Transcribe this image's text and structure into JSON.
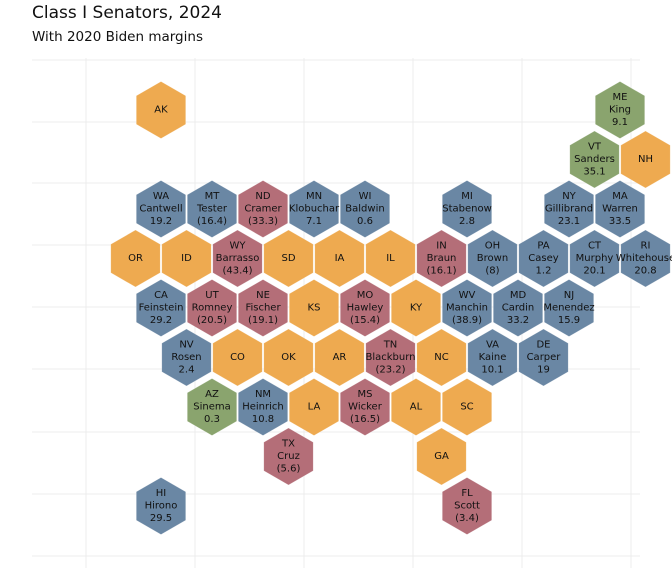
{
  "chart_data": {
    "type": "hex-tile-map",
    "title": "Class I Senators, 2024",
    "subtitle": "With 2020 Biden margins",
    "grid": true,
    "colors": {
      "Democrat": "#6a87a4",
      "Republican": "#b46e78",
      "Independent": "#8aa46e",
      "No race": "#eeaa50"
    },
    "states": [
      {
        "abbr": "AK",
        "col": 1,
        "row": 0,
        "party": "No race"
      },
      {
        "abbr": "ME",
        "col": 10,
        "row": 0,
        "party": "Independent",
        "senator": "King",
        "margin": "9.1"
      },
      {
        "abbr": "VT",
        "col": 9.5,
        "row": 1,
        "party": "Independent",
        "senator": "Sanders",
        "margin": "35.1"
      },
      {
        "abbr": "NH",
        "col": 10.5,
        "row": 1,
        "party": "No race"
      },
      {
        "abbr": "WA",
        "col": 1,
        "row": 2,
        "party": "Democrat",
        "senator": "Cantwell",
        "margin": "19.2"
      },
      {
        "abbr": "MT",
        "col": 2,
        "row": 2,
        "party": "Democrat",
        "senator": "Tester",
        "margin": "(16.4)"
      },
      {
        "abbr": "ND",
        "col": 3,
        "row": 2,
        "party": "Republican",
        "senator": "Cramer",
        "margin": "(33.3)"
      },
      {
        "abbr": "MN",
        "col": 4,
        "row": 2,
        "party": "Democrat",
        "senator": "Klobuchar",
        "margin": "7.1"
      },
      {
        "abbr": "WI",
        "col": 5,
        "row": 2,
        "party": "Democrat",
        "senator": "Baldwin",
        "margin": "0.6"
      },
      {
        "abbr": "MI",
        "col": 7,
        "row": 2,
        "party": "Democrat",
        "senator": "Stabenow",
        "margin": "2.8"
      },
      {
        "abbr": "NY",
        "col": 9,
        "row": 2,
        "party": "Democrat",
        "senator": "Gillibrand",
        "margin": "23.1"
      },
      {
        "abbr": "MA",
        "col": 10,
        "row": 2,
        "party": "Democrat",
        "senator": "Warren",
        "margin": "33.5"
      },
      {
        "abbr": "OR",
        "col": 0.5,
        "row": 3,
        "party": "No race"
      },
      {
        "abbr": "ID",
        "col": 1.5,
        "row": 3,
        "party": "No race"
      },
      {
        "abbr": "WY",
        "col": 2.5,
        "row": 3,
        "party": "Republican",
        "senator": "Barrasso",
        "margin": "(43.4)"
      },
      {
        "abbr": "SD",
        "col": 3.5,
        "row": 3,
        "party": "No race"
      },
      {
        "abbr": "IA",
        "col": 4.5,
        "row": 3,
        "party": "No race"
      },
      {
        "abbr": "IL",
        "col": 5.5,
        "row": 3,
        "party": "No race"
      },
      {
        "abbr": "IN",
        "col": 6.5,
        "row": 3,
        "party": "Republican",
        "senator": "Braun",
        "margin": "(16.1)"
      },
      {
        "abbr": "OH",
        "col": 7.5,
        "row": 3,
        "party": "Democrat",
        "senator": "Brown",
        "margin": "(8)"
      },
      {
        "abbr": "PA",
        "col": 8.5,
        "row": 3,
        "party": "Democrat",
        "senator": "Casey",
        "margin": "1.2"
      },
      {
        "abbr": "CT",
        "col": 9.5,
        "row": 3,
        "party": "Democrat",
        "senator": "Murphy",
        "margin": "20.1"
      },
      {
        "abbr": "RI",
        "col": 10.5,
        "row": 3,
        "party": "Democrat",
        "senator": "Whitehouse",
        "margin": "20.8"
      },
      {
        "abbr": "CA",
        "col": 1,
        "row": 4,
        "party": "Democrat",
        "senator": "Feinstein",
        "margin": "29.2"
      },
      {
        "abbr": "UT",
        "col": 2,
        "row": 4,
        "party": "Republican",
        "senator": "Romney",
        "margin": "(20.5)"
      },
      {
        "abbr": "NE",
        "col": 3,
        "row": 4,
        "party": "Republican",
        "senator": "Fischer",
        "margin": "(19.1)"
      },
      {
        "abbr": "KS",
        "col": 4,
        "row": 4,
        "party": "No race"
      },
      {
        "abbr": "MO",
        "col": 5,
        "row": 4,
        "party": "Republican",
        "senator": "Hawley",
        "margin": "(15.4)"
      },
      {
        "abbr": "KY",
        "col": 6,
        "row": 4,
        "party": "No race"
      },
      {
        "abbr": "WV",
        "col": 7,
        "row": 4,
        "party": "Democrat",
        "senator": "Manchin",
        "margin": "(38.9)"
      },
      {
        "abbr": "MD",
        "col": 8,
        "row": 4,
        "party": "Democrat",
        "senator": "Cardin",
        "margin": "33.2"
      },
      {
        "abbr": "NJ",
        "col": 9,
        "row": 4,
        "party": "Democrat",
        "senator": "Menendez",
        "margin": "15.9"
      },
      {
        "abbr": "NV",
        "col": 1.5,
        "row": 5,
        "party": "Democrat",
        "senator": "Rosen",
        "margin": "2.4"
      },
      {
        "abbr": "CO",
        "col": 2.5,
        "row": 5,
        "party": "No race"
      },
      {
        "abbr": "OK",
        "col": 3.5,
        "row": 5,
        "party": "No race"
      },
      {
        "abbr": "AR",
        "col": 4.5,
        "row": 5,
        "party": "No race"
      },
      {
        "abbr": "TN",
        "col": 5.5,
        "row": 5,
        "party": "Republican",
        "senator": "Blackburn",
        "margin": "(23.2)"
      },
      {
        "abbr": "NC",
        "col": 6.5,
        "row": 5,
        "party": "No race"
      },
      {
        "abbr": "VA",
        "col": 7.5,
        "row": 5,
        "party": "Democrat",
        "senator": "Kaine",
        "margin": "10.1"
      },
      {
        "abbr": "DE",
        "col": 8.5,
        "row": 5,
        "party": "Democrat",
        "senator": "Carper",
        "margin": "19"
      },
      {
        "abbr": "AZ",
        "col": 2,
        "row": 6,
        "party": "Independent",
        "senator": "Sinema",
        "margin": "0.3"
      },
      {
        "abbr": "NM",
        "col": 3,
        "row": 6,
        "party": "Democrat",
        "senator": "Heinrich",
        "margin": "10.8"
      },
      {
        "abbr": "LA",
        "col": 4,
        "row": 6,
        "party": "No race"
      },
      {
        "abbr": "MS",
        "col": 5,
        "row": 6,
        "party": "Republican",
        "senator": "Wicker",
        "margin": "(16.5)"
      },
      {
        "abbr": "AL",
        "col": 6,
        "row": 6,
        "party": "No race"
      },
      {
        "abbr": "SC",
        "col": 7,
        "row": 6,
        "party": "No race"
      },
      {
        "abbr": "TX",
        "col": 3.5,
        "row": 7,
        "party": "Republican",
        "senator": "Cruz",
        "margin": "(5.6)"
      },
      {
        "abbr": "GA",
        "col": 6.5,
        "row": 7,
        "party": "No race"
      },
      {
        "abbr": "HI",
        "col": 1,
        "row": 8,
        "party": "Democrat",
        "senator": "Hirono",
        "margin": "29.5"
      },
      {
        "abbr": "FL",
        "col": 7,
        "row": 8,
        "party": "Republican",
        "senator": "Scott",
        "margin": "(3.4)"
      }
    ]
  }
}
